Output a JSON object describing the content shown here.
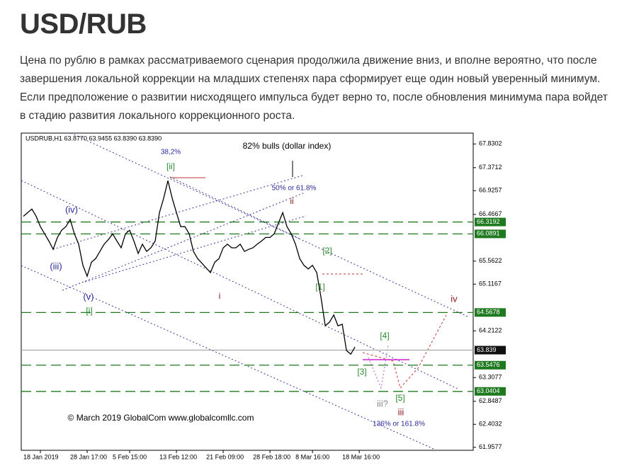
{
  "header": {
    "title": "USD/RUB"
  },
  "paragraph": {
    "lines": [
      "Цена по рублю в рамках рассматриваемого сценария продолжила движение вниз, и вполне вероятно, что после",
      "завершения локальной коррекции на младших степенях пара сформирует еще один новый уверенный минимум.",
      "Если предположение о развитии нисходящего импульса будет верно то, после обновления минимума пара войдет",
      "в стадию развития локального коррекционного роста."
    ]
  },
  "chart_data": {
    "type": "line",
    "title": "USDRUB,H1  63.8770 63.9455 63.8390 63.8390",
    "values": [
      66.43,
      66.5,
      66.57,
      66.43,
      66.23,
      66.09,
      65.95,
      65.79,
      66.02,
      66.16,
      66.23,
      66.37,
      66.09,
      65.89,
      65.48,
      65.27,
      65.54,
      65.61,
      65.75,
      65.89,
      65.98,
      66.09,
      65.95,
      65.82,
      66.09,
      66.16,
      65.95,
      65.71,
      65.89,
      65.75,
      65.82,
      65.95,
      66.5,
      66.78,
      67.12,
      66.78,
      66.5,
      66.23,
      66.23,
      66.09,
      65.75,
      65.61,
      65.52,
      65.43,
      65.34,
      65.54,
      65.61,
      65.82,
      65.89,
      65.82,
      65.82,
      65.89,
      65.75,
      65.79,
      65.82,
      65.89,
      65.95,
      66.02,
      66.02,
      66.09,
      66.3,
      66.5,
      66.23,
      66.09,
      65.89,
      65.61,
      65.48,
      65.41,
      65.48,
      65.34,
      64.86,
      64.31,
      64.38,
      64.52,
      64.31,
      64.34,
      63.83,
      63.76,
      63.9
    ],
    "color": "#000000",
    "xlim": [
      -0.5,
      105.8
    ],
    "xticks": [
      {
        "value": 4,
        "label": "18 Jan 2019"
      },
      {
        "value": 15,
        "label": "28 Jan 17:00"
      },
      {
        "value": 25,
        "label": "5 Feb 15:00"
      },
      {
        "value": 36,
        "label": "13 Feb 12:00"
      },
      {
        "value": 47,
        "label": "21 Feb 09:00"
      },
      {
        "value": 58,
        "label": "28 Feb 18:00"
      },
      {
        "value": 68,
        "label": "8 Mar 16:00"
      },
      {
        "value": 79,
        "label": "18 Mar 16:00"
      }
    ],
    "ylim": [
      61.9,
      68.04
    ],
    "yticks": [
      67.8302,
      67.3712,
      66.9257,
      66.4667,
      65.5622,
      65.1167,
      64.2122,
      63.3077,
      62.8487,
      62.4032,
      61.9577
    ],
    "levels": [
      66.3192,
      66.0891,
      64.5678,
      63.5476,
      63.0404
    ],
    "current": 63.839,
    "annotations": [
      {
        "text": "82% bulls (dollar index)",
        "color": "#000000"
      },
      {
        "text": "38,2%",
        "color": "#2a2a9a"
      },
      {
        "text": "[ii]",
        "color": "#2a8a2a"
      },
      {
        "text": "50% or 61.8%",
        "color": "#2a2a9a"
      },
      {
        "text": "ii",
        "color": "#8a1a1a"
      },
      {
        "text": "(iv)",
        "color": "#2a2a9a"
      },
      {
        "text": "(iii)",
        "color": "#2a2a9a"
      },
      {
        "text": "(v)",
        "color": "#2a2a9a"
      },
      {
        "text": "[i]",
        "color": "#2a8a2a"
      },
      {
        "text": "i",
        "color": "#8a1a1a"
      },
      {
        "text": "[2]",
        "color": "#2a8a2a"
      },
      {
        "text": "[1]",
        "color": "#2a8a2a"
      },
      {
        "text": "iv",
        "color": "#8a1a1a"
      },
      {
        "text": "[4]",
        "color": "#2a8a2a"
      },
      {
        "text": "[3]",
        "color": "#2a8a2a"
      },
      {
        "text": "[5]",
        "color": "#2a8a2a"
      },
      {
        "text": "iii?",
        "color": "#888888"
      },
      {
        "text": "iii",
        "color": "#8a1a1a"
      },
      {
        "text": "136% or 161.8%",
        "color": "#2a2a9a"
      },
      {
        "text": "© March 2019 GlobalCom www.globalcomllc.com",
        "color": "#000000"
      }
    ]
  }
}
